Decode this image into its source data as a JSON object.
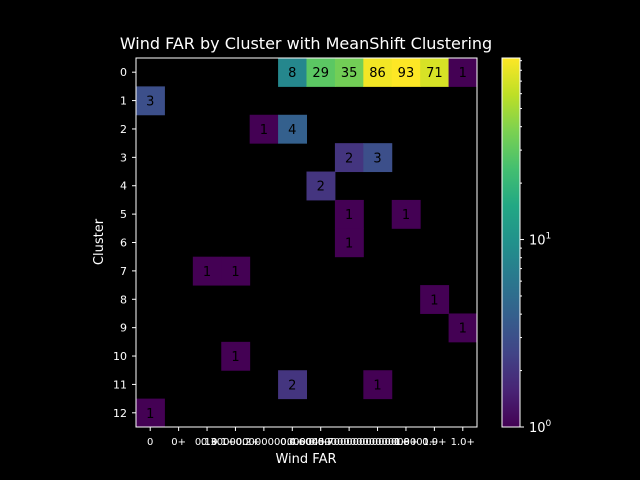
{
  "chart_data": {
    "type": "heatmap",
    "title": "Wind FAR by Cluster with MeanShift Clustering",
    "xlabel": "Wind FAR",
    "ylabel": "Cluster",
    "x_tick_labels": [
      "0",
      "0+",
      "0.1+",
      "0.1+0.2+",
      "0.30000000000000004+",
      "0.4+",
      "0.5+",
      "0.6000000000000001+",
      "0.7000000000000001+",
      "0.8+",
      "0.9+",
      "1.0+"
    ],
    "y_tick_labels": [
      "0",
      "1",
      "2",
      "3",
      "4",
      "5",
      "6",
      "7",
      "8",
      "9",
      "10",
      "11",
      "12"
    ],
    "cells": [
      {
        "row": 0,
        "col": 5,
        "value": 8
      },
      {
        "row": 0,
        "col": 6,
        "value": 29
      },
      {
        "row": 0,
        "col": 7,
        "value": 35
      },
      {
        "row": 0,
        "col": 8,
        "value": 86
      },
      {
        "row": 0,
        "col": 9,
        "value": 93
      },
      {
        "row": 0,
        "col": 10,
        "value": 71
      },
      {
        "row": 0,
        "col": 11,
        "value": 1
      },
      {
        "row": 1,
        "col": 0,
        "value": 3
      },
      {
        "row": 2,
        "col": 4,
        "value": 1
      },
      {
        "row": 2,
        "col": 5,
        "value": 4
      },
      {
        "row": 3,
        "col": 7,
        "value": 2
      },
      {
        "row": 3,
        "col": 8,
        "value": 3
      },
      {
        "row": 4,
        "col": 6,
        "value": 2
      },
      {
        "row": 5,
        "col": 7,
        "value": 1
      },
      {
        "row": 5,
        "col": 9,
        "value": 1
      },
      {
        "row": 6,
        "col": 7,
        "value": 1
      },
      {
        "row": 7,
        "col": 2,
        "value": 1
      },
      {
        "row": 7,
        "col": 3,
        "value": 1
      },
      {
        "row": 8,
        "col": 10,
        "value": 1
      },
      {
        "row": 9,
        "col": 11,
        "value": 1
      },
      {
        "row": 10,
        "col": 3,
        "value": 1
      },
      {
        "row": 11,
        "col": 5,
        "value": 2
      },
      {
        "row": 11,
        "col": 8,
        "value": 1
      },
      {
        "row": 12,
        "col": 0,
        "value": 1
      }
    ],
    "colorbar": {
      "scale": "log",
      "range": [
        1,
        93
      ],
      "colormap": "viridis",
      "ticks": [
        {
          "value": 1,
          "base": "10",
          "exp": "0"
        },
        {
          "value": 10,
          "base": "10",
          "exp": "1"
        }
      ]
    },
    "background": "#000000"
  }
}
